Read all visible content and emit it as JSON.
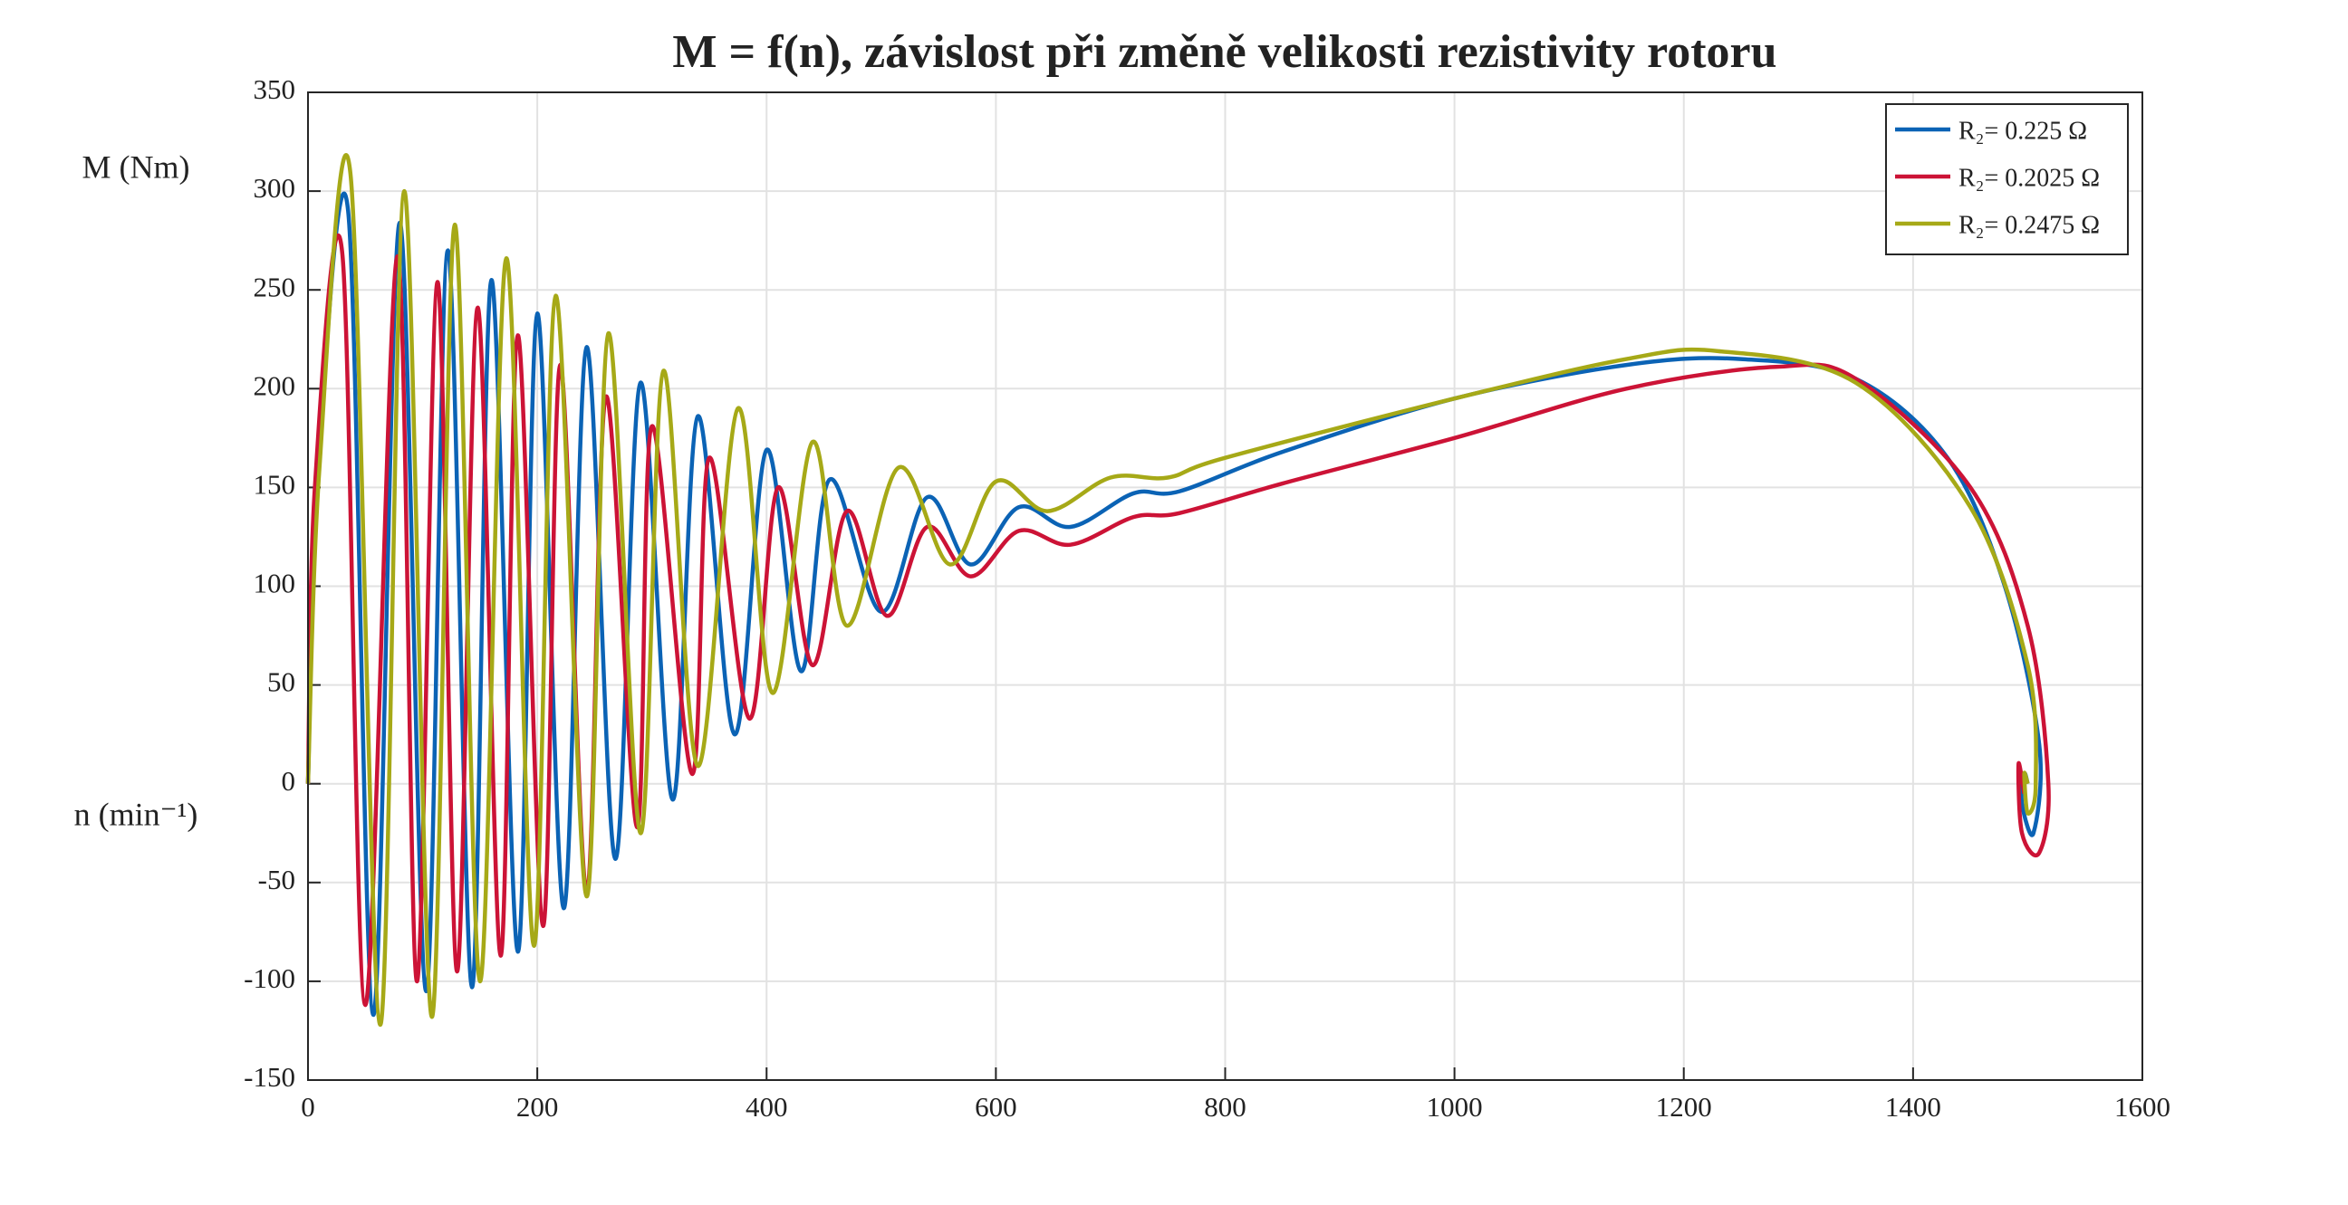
{
  "chart_data": {
    "type": "line",
    "title": "M = f(n), závislost při změně velikosti rezistivity rotoru",
    "y_label": "M (Nm)",
    "x_label": "n (min⁻¹)",
    "xlim": [
      0,
      1600
    ],
    "xticks": [
      0,
      200,
      400,
      600,
      800,
      1000,
      1200,
      1400,
      1600
    ],
    "ylim": [
      -150,
      350
    ],
    "yticks": [
      -150,
      -100,
      -50,
      0,
      50,
      100,
      150,
      200,
      250,
      300,
      350
    ],
    "grid": true,
    "legend": "northeast",
    "series": [
      {
        "name": "R₂= 0.225 Ω",
        "color": "#0b63b5",
        "x": [
          0,
          8,
          35,
          57,
          80,
          103,
          122,
          143,
          160,
          183,
          200,
          223,
          243,
          268,
          290,
          318,
          340,
          372,
          400,
          430,
          455,
          500,
          540,
          578,
          620,
          665,
          720,
          760,
          850,
          1000,
          1150,
          1250,
          1350,
          1430,
          1480,
          1510,
          1505,
          1495,
          1497,
          1500
        ],
        "values": [
          0,
          150,
          290,
          -117,
          284,
          -105,
          270,
          -103,
          255,
          -85,
          238,
          -63,
          221,
          -38,
          203,
          -8,
          186,
          25,
          169,
          57,
          154,
          87,
          145,
          111,
          140,
          130,
          147,
          148,
          168,
          195,
          212,
          215,
          205,
          165,
          100,
          20,
          -25,
          -10,
          5,
          0
        ]
      },
      {
        "name": "R₂= 0.2025 Ω",
        "color": "#cc1336",
        "x": [
          0,
          6,
          30,
          50,
          78,
          95,
          113,
          130,
          148,
          168,
          183,
          205,
          220,
          243,
          260,
          287,
          300,
          335,
          350,
          385,
          410,
          440,
          470,
          505,
          540,
          578,
          620,
          665,
          720,
          760,
          850,
          1000,
          1150,
          1280,
          1350,
          1450,
          1500,
          1518,
          1510,
          1495,
          1492,
          1497
        ],
        "values": [
          0,
          150,
          268,
          -112,
          267,
          -100,
          254,
          -95,
          241,
          -87,
          227,
          -72,
          212,
          -55,
          196,
          -22,
          181,
          5,
          165,
          33,
          150,
          60,
          138,
          85,
          130,
          105,
          128,
          121,
          135,
          137,
          152,
          175,
          200,
          211,
          205,
          150,
          80,
          0,
          -35,
          -25,
          10,
          -5
        ]
      },
      {
        "name": "R₂= 0.2475 Ω",
        "color": "#a6a917",
        "x": [
          0,
          10,
          37,
          63,
          84,
          108,
          128,
          150,
          173,
          197,
          216,
          243,
          262,
          290,
          310,
          340,
          375,
          405,
          440,
          470,
          515,
          560,
          600,
          645,
          700,
          750,
          800,
          1000,
          1150,
          1230,
          1350,
          1450,
          1500,
          1507,
          1500,
          1497,
          1500
        ],
        "values": [
          0,
          160,
          309,
          -122,
          300,
          -118,
          283,
          -100,
          266,
          -82,
          247,
          -57,
          228,
          -25,
          209,
          9,
          190,
          46,
          173,
          80,
          160,
          111,
          153,
          138,
          155,
          155,
          165,
          195,
          215,
          219,
          203,
          140,
          60,
          0,
          -15,
          5,
          0
        ]
      }
    ]
  }
}
